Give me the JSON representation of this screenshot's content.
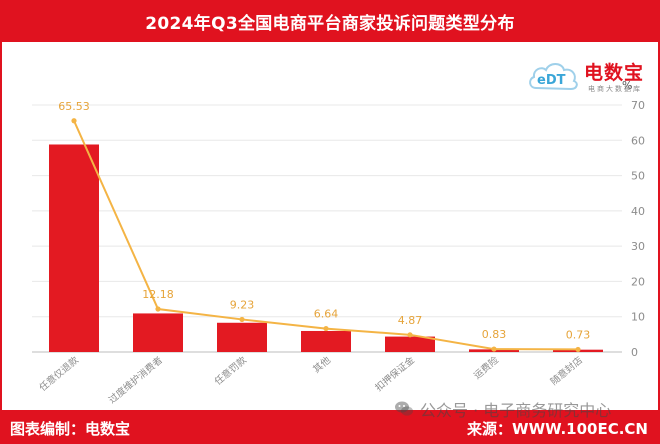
{
  "logo": {
    "icon": "cloud-logo-icon",
    "mark": "eDT",
    "name": "电数宝",
    "tagline": "电商大数据库"
  },
  "footer": {
    "left": "图表编制：电数宝",
    "right": "来源：WWW.100EC.CN"
  },
  "watermark": {
    "icon": "wechat-icon",
    "text": "公众号 · 电子商务研究中心"
  },
  "colors": {
    "brand_red": "#e0121f",
    "bar": "#e31a22",
    "line": "#f4b445",
    "data_label": "#e6a43a",
    "grid": "#e8e8e8",
    "axis_text": "#8c8c8c",
    "logo_blue": "#3aa6d8"
  },
  "chart_data": {
    "type": "bar",
    "title": "2024年Q3全国电商平台商家投诉问题类型分布",
    "categories": [
      "任意仅退款",
      "过度维护消费者",
      "任意罚款",
      "其他",
      "扣押保证金",
      "运费险",
      "随意封店"
    ],
    "series": [
      {
        "type": "bar",
        "values": [
          65.53,
          12.18,
          9.23,
          6.64,
          4.87,
          0.83,
          0.73
        ]
      },
      {
        "type": "line",
        "values": [
          65.53,
          12.18,
          9.23,
          6.64,
          4.87,
          0.83,
          0.73
        ]
      }
    ],
    "yunit": "%",
    "ylim": [
      0,
      70
    ],
    "yticks": [
      0,
      10,
      20,
      30,
      40,
      50,
      60,
      70
    ],
    "y_axis_position": "right",
    "grid": true,
    "legend": "none"
  }
}
